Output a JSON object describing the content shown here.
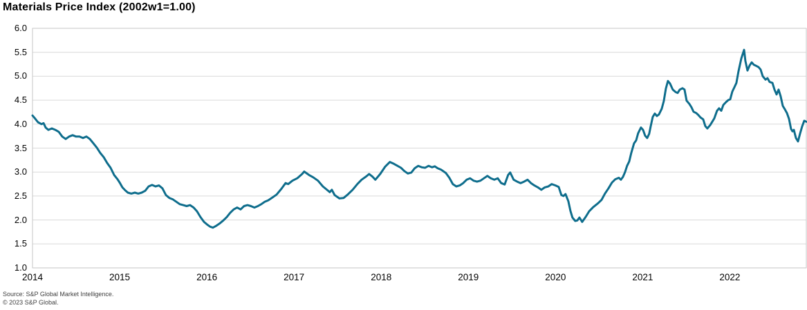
{
  "title": "Materials Price Index (2002w1=1.00)",
  "source": {
    "line1": "Source: S&P Global Market Intelligence.",
    "line2": "© 2023 S&P Global."
  },
  "colors": {
    "line": "#0e6d8c",
    "gridline": "#d9d9d9",
    "plot_border": "#c6c6c6",
    "background": "#ffffff",
    "text": "#000000",
    "source_text": "#404040"
  },
  "chart_data": {
    "type": "line",
    "title": "Materials Price Index (2002w1=1.00)",
    "series_name": "Materials Price Index",
    "index_base": "2002w1=1.00",
    "frequency": "weekly",
    "grid": "horizontal",
    "legend": "none",
    "ylim": [
      1.0,
      6.0
    ],
    "y_ticks": [
      6.0,
      5.5,
      5.0,
      4.5,
      4.0,
      3.5,
      3.0,
      2.5,
      2.0,
      1.5,
      1.0
    ],
    "x_range": [
      2014.0,
      2022.877
    ],
    "x_ticks": [
      2014,
      2015,
      2016,
      2017,
      2018,
      2019,
      2020,
      2021,
      2022
    ],
    "points": [
      [
        2014.0,
        4.18
      ],
      [
        2014.024,
        4.13
      ],
      [
        2014.063,
        4.04
      ],
      [
        2014.103,
        4.0
      ],
      [
        2014.127,
        4.02
      ],
      [
        2014.151,
        3.93
      ],
      [
        2014.182,
        3.88
      ],
      [
        2014.222,
        3.91
      ],
      [
        2014.262,
        3.88
      ],
      [
        2014.301,
        3.84
      ],
      [
        2014.341,
        3.74
      ],
      [
        2014.381,
        3.69
      ],
      [
        2014.42,
        3.74
      ],
      [
        2014.46,
        3.77
      ],
      [
        2014.5,
        3.74
      ],
      [
        2014.539,
        3.74
      ],
      [
        2014.579,
        3.71
      ],
      [
        2014.619,
        3.74
      ],
      [
        2014.658,
        3.69
      ],
      [
        2014.698,
        3.6
      ],
      [
        2014.738,
        3.51
      ],
      [
        2014.777,
        3.4
      ],
      [
        2014.817,
        3.31
      ],
      [
        2014.856,
        3.19
      ],
      [
        2014.896,
        3.09
      ],
      [
        2014.936,
        2.94
      ],
      [
        2014.975,
        2.85
      ],
      [
        2015.0,
        2.78
      ],
      [
        2015.031,
        2.68
      ],
      [
        2015.063,
        2.62
      ],
      [
        2015.094,
        2.57
      ],
      [
        2015.134,
        2.55
      ],
      [
        2015.174,
        2.57
      ],
      [
        2015.213,
        2.55
      ],
      [
        2015.253,
        2.57
      ],
      [
        2015.293,
        2.61
      ],
      [
        2015.332,
        2.7
      ],
      [
        2015.372,
        2.73
      ],
      [
        2015.411,
        2.7
      ],
      [
        2015.451,
        2.72
      ],
      [
        2015.491,
        2.66
      ],
      [
        2015.53,
        2.52
      ],
      [
        2015.57,
        2.46
      ],
      [
        2015.61,
        2.43
      ],
      [
        2015.649,
        2.38
      ],
      [
        2015.689,
        2.33
      ],
      [
        2015.729,
        2.31
      ],
      [
        2015.768,
        2.29
      ],
      [
        2015.808,
        2.31
      ],
      [
        2015.848,
        2.26
      ],
      [
        2015.887,
        2.18
      ],
      [
        2015.927,
        2.06
      ],
      [
        2015.967,
        1.96
      ],
      [
        2016.006,
        1.9
      ],
      [
        2016.038,
        1.86
      ],
      [
        2016.07,
        1.84
      ],
      [
        2016.109,
        1.88
      ],
      [
        2016.149,
        1.93
      ],
      [
        2016.189,
        1.99
      ],
      [
        2016.228,
        2.06
      ],
      [
        2016.268,
        2.15
      ],
      [
        2016.308,
        2.22
      ],
      [
        2016.347,
        2.26
      ],
      [
        2016.387,
        2.22
      ],
      [
        2016.427,
        2.29
      ],
      [
        2016.466,
        2.31
      ],
      [
        2016.506,
        2.29
      ],
      [
        2016.546,
        2.26
      ],
      [
        2016.585,
        2.29
      ],
      [
        2016.625,
        2.33
      ],
      [
        2016.665,
        2.38
      ],
      [
        2016.704,
        2.41
      ],
      [
        2016.744,
        2.46
      ],
      [
        2016.8,
        2.53
      ],
      [
        2016.855,
        2.65
      ],
      [
        2016.903,
        2.77
      ],
      [
        2016.934,
        2.75
      ],
      [
        2016.982,
        2.82
      ],
      [
        2017.037,
        2.87
      ],
      [
        2017.093,
        2.96
      ],
      [
        2017.117,
        3.01
      ],
      [
        2017.172,
        2.94
      ],
      [
        2017.22,
        2.89
      ],
      [
        2017.275,
        2.82
      ],
      [
        2017.331,
        2.7
      ],
      [
        2017.378,
        2.63
      ],
      [
        2017.41,
        2.58
      ],
      [
        2017.434,
        2.63
      ],
      [
        2017.466,
        2.52
      ],
      [
        2017.49,
        2.49
      ],
      [
        2017.521,
        2.45
      ],
      [
        2017.569,
        2.46
      ],
      [
        2017.616,
        2.53
      ],
      [
        2017.672,
        2.63
      ],
      [
        2017.727,
        2.75
      ],
      [
        2017.775,
        2.84
      ],
      [
        2017.83,
        2.91
      ],
      [
        2017.862,
        2.96
      ],
      [
        2017.902,
        2.9
      ],
      [
        2017.933,
        2.84
      ],
      [
        2017.989,
        2.96
      ],
      [
        2018.044,
        3.11
      ],
      [
        2018.1,
        3.21
      ],
      [
        2018.147,
        3.17
      ],
      [
        2018.187,
        3.13
      ],
      [
        2018.227,
        3.09
      ],
      [
        2018.266,
        3.02
      ],
      [
        2018.306,
        2.97
      ],
      [
        2018.346,
        2.99
      ],
      [
        2018.385,
        3.08
      ],
      [
        2018.425,
        3.13
      ],
      [
        2018.465,
        3.1
      ],
      [
        2018.504,
        3.09
      ],
      [
        2018.544,
        3.13
      ],
      [
        2018.583,
        3.1
      ],
      [
        2018.615,
        3.12
      ],
      [
        2018.647,
        3.08
      ],
      [
        2018.687,
        3.05
      ],
      [
        2018.742,
        2.98
      ],
      [
        2018.782,
        2.88
      ],
      [
        2018.822,
        2.75
      ],
      [
        2018.861,
        2.7
      ],
      [
        2018.901,
        2.72
      ],
      [
        2018.941,
        2.77
      ],
      [
        2018.98,
        2.84
      ],
      [
        2019.02,
        2.87
      ],
      [
        2019.06,
        2.82
      ],
      [
        2019.099,
        2.8
      ],
      [
        2019.139,
        2.82
      ],
      [
        2019.179,
        2.87
      ],
      [
        2019.218,
        2.92
      ],
      [
        2019.258,
        2.87
      ],
      [
        2019.298,
        2.84
      ],
      [
        2019.337,
        2.87
      ],
      [
        2019.377,
        2.77
      ],
      [
        2019.417,
        2.74
      ],
      [
        2019.456,
        2.94
      ],
      [
        2019.48,
        2.99
      ],
      [
        2019.52,
        2.84
      ],
      [
        2019.56,
        2.8
      ],
      [
        2019.599,
        2.77
      ],
      [
        2019.639,
        2.8
      ],
      [
        2019.679,
        2.84
      ],
      [
        2019.718,
        2.77
      ],
      [
        2019.758,
        2.72
      ],
      [
        2019.798,
        2.68
      ],
      [
        2019.837,
        2.63
      ],
      [
        2019.877,
        2.68
      ],
      [
        2019.917,
        2.7
      ],
      [
        2019.956,
        2.75
      ],
      [
        2020.0,
        2.72
      ],
      [
        2020.036,
        2.69
      ],
      [
        2020.067,
        2.52
      ],
      [
        2020.091,
        2.5
      ],
      [
        2020.115,
        2.54
      ],
      [
        2020.147,
        2.39
      ],
      [
        2020.171,
        2.19
      ],
      [
        2020.194,
        2.05
      ],
      [
        2020.226,
        1.98
      ],
      [
        2020.25,
        1.99
      ],
      [
        2020.274,
        2.05
      ],
      [
        2020.306,
        1.96
      ],
      [
        2020.345,
        2.06
      ],
      [
        2020.385,
        2.18
      ],
      [
        2020.433,
        2.27
      ],
      [
        2020.488,
        2.35
      ],
      [
        2020.528,
        2.42
      ],
      [
        2020.567,
        2.55
      ],
      [
        2020.607,
        2.66
      ],
      [
        2020.647,
        2.78
      ],
      [
        2020.686,
        2.85
      ],
      [
        2020.726,
        2.88
      ],
      [
        2020.75,
        2.84
      ],
      [
        2020.774,
        2.9
      ],
      [
        2020.798,
        3.0
      ],
      [
        2020.821,
        3.13
      ],
      [
        2020.845,
        3.22
      ],
      [
        2020.869,
        3.4
      ],
      [
        2020.901,
        3.6
      ],
      [
        2020.925,
        3.66
      ],
      [
        2020.948,
        3.81
      ],
      [
        2020.98,
        3.93
      ],
      [
        2021.004,
        3.88
      ],
      [
        2021.028,
        3.76
      ],
      [
        2021.052,
        3.71
      ],
      [
        2021.075,
        3.8
      ],
      [
        2021.091,
        3.95
      ],
      [
        2021.115,
        4.15
      ],
      [
        2021.139,
        4.22
      ],
      [
        2021.163,
        4.17
      ],
      [
        2021.186,
        4.2
      ],
      [
        2021.218,
        4.32
      ],
      [
        2021.242,
        4.48
      ],
      [
        2021.266,
        4.74
      ],
      [
        2021.29,
        4.9
      ],
      [
        2021.313,
        4.85
      ],
      [
        2021.345,
        4.72
      ],
      [
        2021.377,
        4.67
      ],
      [
        2021.401,
        4.65
      ],
      [
        2021.425,
        4.72
      ],
      [
        2021.456,
        4.75
      ],
      [
        2021.48,
        4.72
      ],
      [
        2021.504,
        4.49
      ],
      [
        2021.536,
        4.42
      ],
      [
        2021.56,
        4.35
      ],
      [
        2021.583,
        4.26
      ],
      [
        2021.615,
        4.23
      ],
      [
        2021.639,
        4.19
      ],
      [
        2021.663,
        4.14
      ],
      [
        2021.694,
        4.1
      ],
      [
        2021.718,
        3.96
      ],
      [
        2021.742,
        3.91
      ],
      [
        2021.774,
        3.98
      ],
      [
        2021.798,
        4.05
      ],
      [
        2021.821,
        4.12
      ],
      [
        2021.853,
        4.28
      ],
      [
        2021.877,
        4.33
      ],
      [
        2021.901,
        4.28
      ],
      [
        2021.925,
        4.4
      ],
      [
        2021.956,
        4.46
      ],
      [
        2021.98,
        4.5
      ],
      [
        2022.004,
        4.52
      ],
      [
        2022.028,
        4.68
      ],
      [
        2022.052,
        4.77
      ],
      [
        2022.075,
        4.86
      ],
      [
        2022.099,
        5.1
      ],
      [
        2022.131,
        5.37
      ],
      [
        2022.163,
        5.55
      ],
      [
        2022.178,
        5.32
      ],
      [
        2022.202,
        5.12
      ],
      [
        2022.226,
        5.22
      ],
      [
        2022.25,
        5.29
      ],
      [
        2022.274,
        5.24
      ],
      [
        2022.297,
        5.22
      ],
      [
        2022.329,
        5.19
      ],
      [
        2022.353,
        5.14
      ],
      [
        2022.377,
        5.0
      ],
      [
        2022.409,
        4.93
      ],
      [
        2022.432,
        4.96
      ],
      [
        2022.456,
        4.88
      ],
      [
        2022.488,
        4.86
      ],
      [
        2022.512,
        4.72
      ],
      [
        2022.536,
        4.62
      ],
      [
        2022.559,
        4.72
      ],
      [
        2022.583,
        4.58
      ],
      [
        2022.607,
        4.38
      ],
      [
        2022.631,
        4.31
      ],
      [
        2022.655,
        4.23
      ],
      [
        2022.679,
        4.11
      ],
      [
        2022.702,
        3.9
      ],
      [
        2022.718,
        3.85
      ],
      [
        2022.734,
        3.88
      ],
      [
        2022.758,
        3.71
      ],
      [
        2022.782,
        3.64
      ],
      [
        2022.806,
        3.81
      ],
      [
        2022.829,
        3.95
      ],
      [
        2022.853,
        4.07
      ],
      [
        2022.877,
        4.05
      ]
    ]
  }
}
